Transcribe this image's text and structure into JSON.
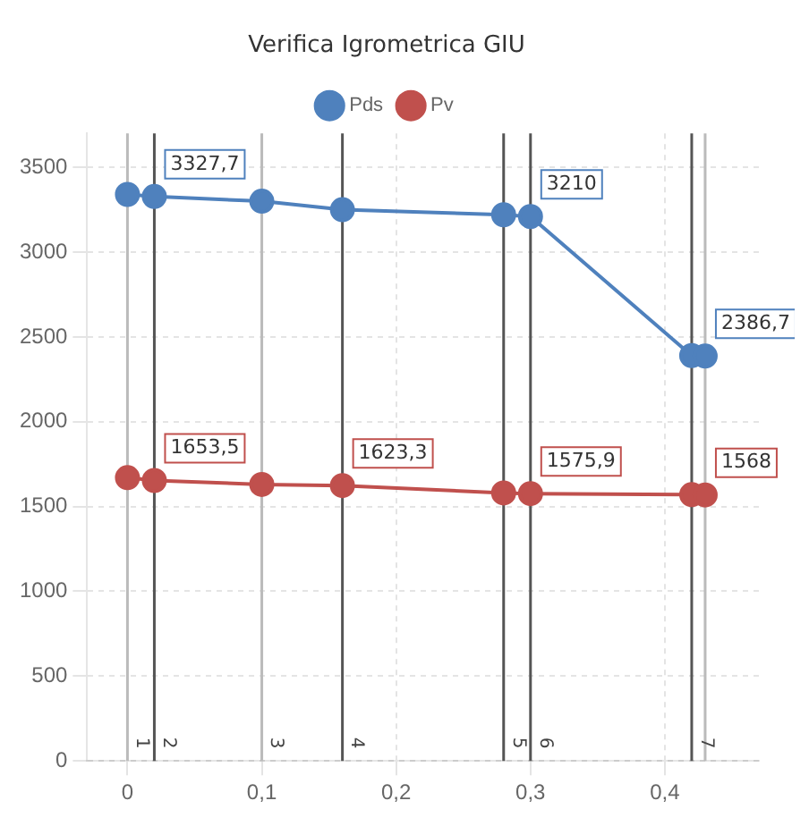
{
  "chart_data": {
    "type": "line",
    "title": "Verifica Igrometrica GIU",
    "x": [
      0,
      0.02,
      0.1,
      0.16,
      0.28,
      0.3,
      0.42,
      0.43
    ],
    "series": [
      {
        "name": "Pds",
        "color": "#4f81bd",
        "values": [
          3340,
          3327.7,
          3300,
          3250,
          3220,
          3210,
          2390,
          2386.7
        ],
        "value_labels": [
          null,
          "3327,7",
          null,
          null,
          null,
          "3210",
          null,
          "2386,7"
        ]
      },
      {
        "name": "Pv",
        "color": "#c0504d",
        "values": [
          1670,
          1653.5,
          1630,
          1623.3,
          1580,
          1575.9,
          1570,
          1568
        ],
        "value_labels": [
          null,
          "1653,5",
          null,
          "1623,3",
          null,
          "1575,9",
          null,
          "1568"
        ]
      }
    ],
    "xlim": [
      -0.03,
      0.47
    ],
    "xticks": [
      0,
      {
        "value": 0.1,
        "label": "0,1"
      },
      {
        "value": 0.2,
        "label": "0,2"
      },
      {
        "value": 0.3,
        "label": "0,3"
      },
      {
        "value": 0.4,
        "label": "0,4"
      }
    ],
    "ylim": [
      0,
      3700
    ],
    "yticks": [
      0,
      500,
      1000,
      1500,
      2000,
      2500,
      3000,
      3500
    ],
    "annotations": [
      {
        "text": "1",
        "x": 0,
        "y": 0
      },
      {
        "text": "2",
        "x": 0.02,
        "y": 0
      },
      {
        "text": "3",
        "x": 0.1,
        "y": 0
      },
      {
        "text": "4",
        "x": 0.16,
        "y": 0
      },
      {
        "text": "5",
        "x": 0.28,
        "y": 0
      },
      {
        "text": "6",
        "x": 0.3,
        "y": 0
      },
      {
        "text": "7",
        "x": 0.42,
        "y": 0
      }
    ],
    "ref_lines": [
      {
        "axis": "x",
        "value": 0,
        "color": "#bbbbbb"
      },
      {
        "axis": "x",
        "value": 0.02,
        "color": "#555555"
      },
      {
        "axis": "x",
        "value": 0.1,
        "color": "#bbbbbb"
      },
      {
        "axis": "x",
        "value": 0.16,
        "color": "#555555"
      },
      {
        "axis": "x",
        "value": 0.28,
        "color": "#555555"
      },
      {
        "axis": "x",
        "value": 0.3,
        "color": "#555555"
      },
      {
        "axis": "x",
        "value": 0.42,
        "color": "#555555"
      },
      {
        "axis": "x",
        "value": 0.43,
        "color": "#bbbbbb"
      }
    ],
    "grid": true,
    "legend": "top",
    "marker": "circle",
    "line_style": "solid"
  }
}
